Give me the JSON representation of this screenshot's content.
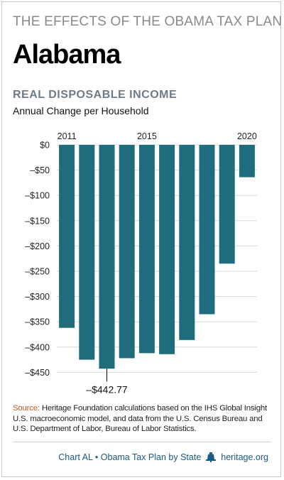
{
  "header": {
    "supertitle": "THE EFFECTS OF THE OBAMA TAX PLAN",
    "state": "Alabama"
  },
  "chart_data": {
    "type": "bar",
    "title": "REAL DISPOSABLE INCOME",
    "subtitle": "Annual Change per Household",
    "categories": [
      "2011",
      "2012",
      "2013",
      "2014",
      "2015",
      "2016",
      "2017",
      "2018",
      "2019",
      "2020"
    ],
    "values": [
      -362,
      -425,
      -442.77,
      -422,
      -412,
      -414,
      -386,
      -335,
      -235,
      -64
    ],
    "x_tick_labels": [
      "2011",
      "2015",
      "2020"
    ],
    "y_tick_labels": [
      "$0",
      "–$50",
      "–$100",
      "–$150",
      "–$200",
      "–$250",
      "–$300",
      "–$350",
      "–$400",
      "–$450"
    ],
    "ylim": [
      -475,
      0
    ],
    "annotation": {
      "text": "–$442.77",
      "category": "2013"
    },
    "bar_color": "#1f6c7c",
    "grid": true
  },
  "source": {
    "label": "Source:",
    "text": "Heritage Foundation calculations based on the IHS Global Insight U.S. macroeconomic model, and data from the U.S. Census Bureau and U.S. Department of Labor, Bureau of Labor Statistics."
  },
  "footer": {
    "chart_id": "Chart AL • Obama Tax Plan by State",
    "site": "heritage.org",
    "icon": "liberty-bell-icon"
  }
}
